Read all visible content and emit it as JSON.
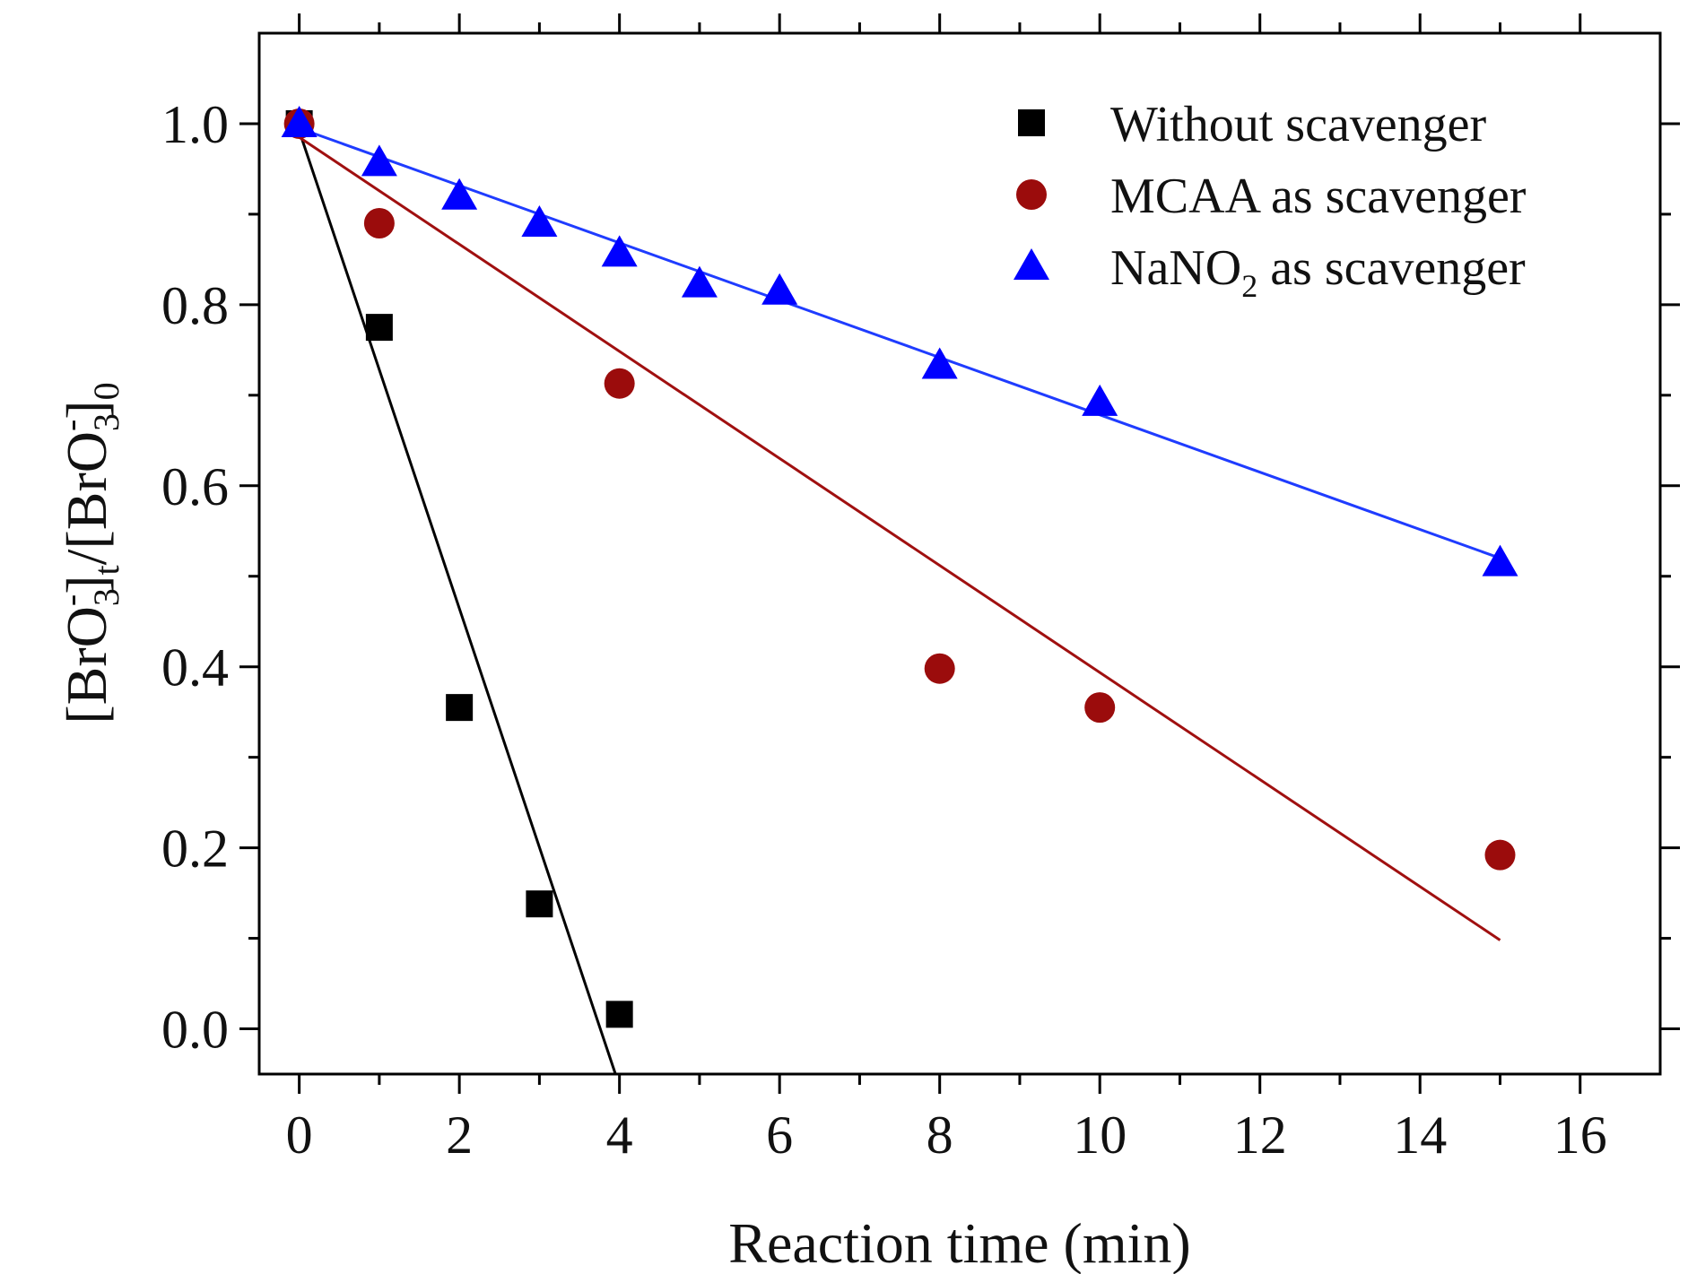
{
  "chart_data": {
    "type": "scatter",
    "xlabel": "Reaction time (min)",
    "ylabel": {
      "p1": "[BrO",
      "p1_sub": "3",
      "p1_sup": "-",
      "p2": "]",
      "p2_sub": "t",
      "p3": "/[BrO",
      "p3_sub": "3",
      "p3_sup": "-",
      "p4": "]",
      "p4_sub": "0"
    },
    "xlim": [
      -0.5,
      17
    ],
    "ylim": [
      -0.05,
      1.1
    ],
    "xticks": [
      0,
      2,
      4,
      6,
      8,
      10,
      12,
      14,
      16
    ],
    "xtick_labels": [
      "0",
      "2",
      "4",
      "6",
      "8",
      "10",
      "12",
      "14",
      "16"
    ],
    "yticks": [
      0.0,
      0.2,
      0.4,
      0.6,
      0.8,
      1.0
    ],
    "ytick_labels": [
      "0.0",
      "0.2",
      "0.4",
      "0.6",
      "0.8",
      "1.0"
    ],
    "legend_position": "top-right",
    "series": [
      {
        "name": "Without scavenger",
        "legend_text": "Without scavenger",
        "legend_sub": "",
        "legend_tail": "",
        "marker": "square",
        "color": "#000000",
        "line_color": "#000000",
        "x": [
          0,
          1,
          2,
          3,
          4
        ],
        "y": [
          1.0,
          0.775,
          0.355,
          0.138,
          0.016
        ],
        "fit": {
          "x0": 0,
          "y0": 0.992,
          "x1": 3.95,
          "y1": -0.05
        }
      },
      {
        "name": "MCAA as scavenger",
        "legend_text": "MCAA as scavenger",
        "legend_sub": "",
        "legend_tail": "",
        "marker": "circle",
        "color": "#9b0c0c",
        "line_color": "#a01010",
        "x": [
          0,
          1,
          4,
          8,
          10,
          15
        ],
        "y": [
          1.0,
          0.89,
          0.713,
          0.398,
          0.355,
          0.192
        ],
        "fit": {
          "x0": 0,
          "y0": 0.985,
          "x1": 15,
          "y1": 0.098
        }
      },
      {
        "name": "NaNO2 as scavenger",
        "legend_text": "NaNO",
        "legend_sub": "2",
        "legend_tail": " as scavenger",
        "marker": "triangle",
        "color": "#0000ff",
        "line_color": "#1f3cff",
        "x": [
          0,
          1,
          2,
          3,
          4,
          5,
          6,
          8,
          10,
          15
        ],
        "y": [
          1.0,
          0.957,
          0.92,
          0.89,
          0.857,
          0.823,
          0.815,
          0.733,
          0.692,
          0.515
        ],
        "fit": {
          "x0": 0,
          "y0": 0.995,
          "x1": 15,
          "y1": 0.52
        }
      }
    ]
  }
}
